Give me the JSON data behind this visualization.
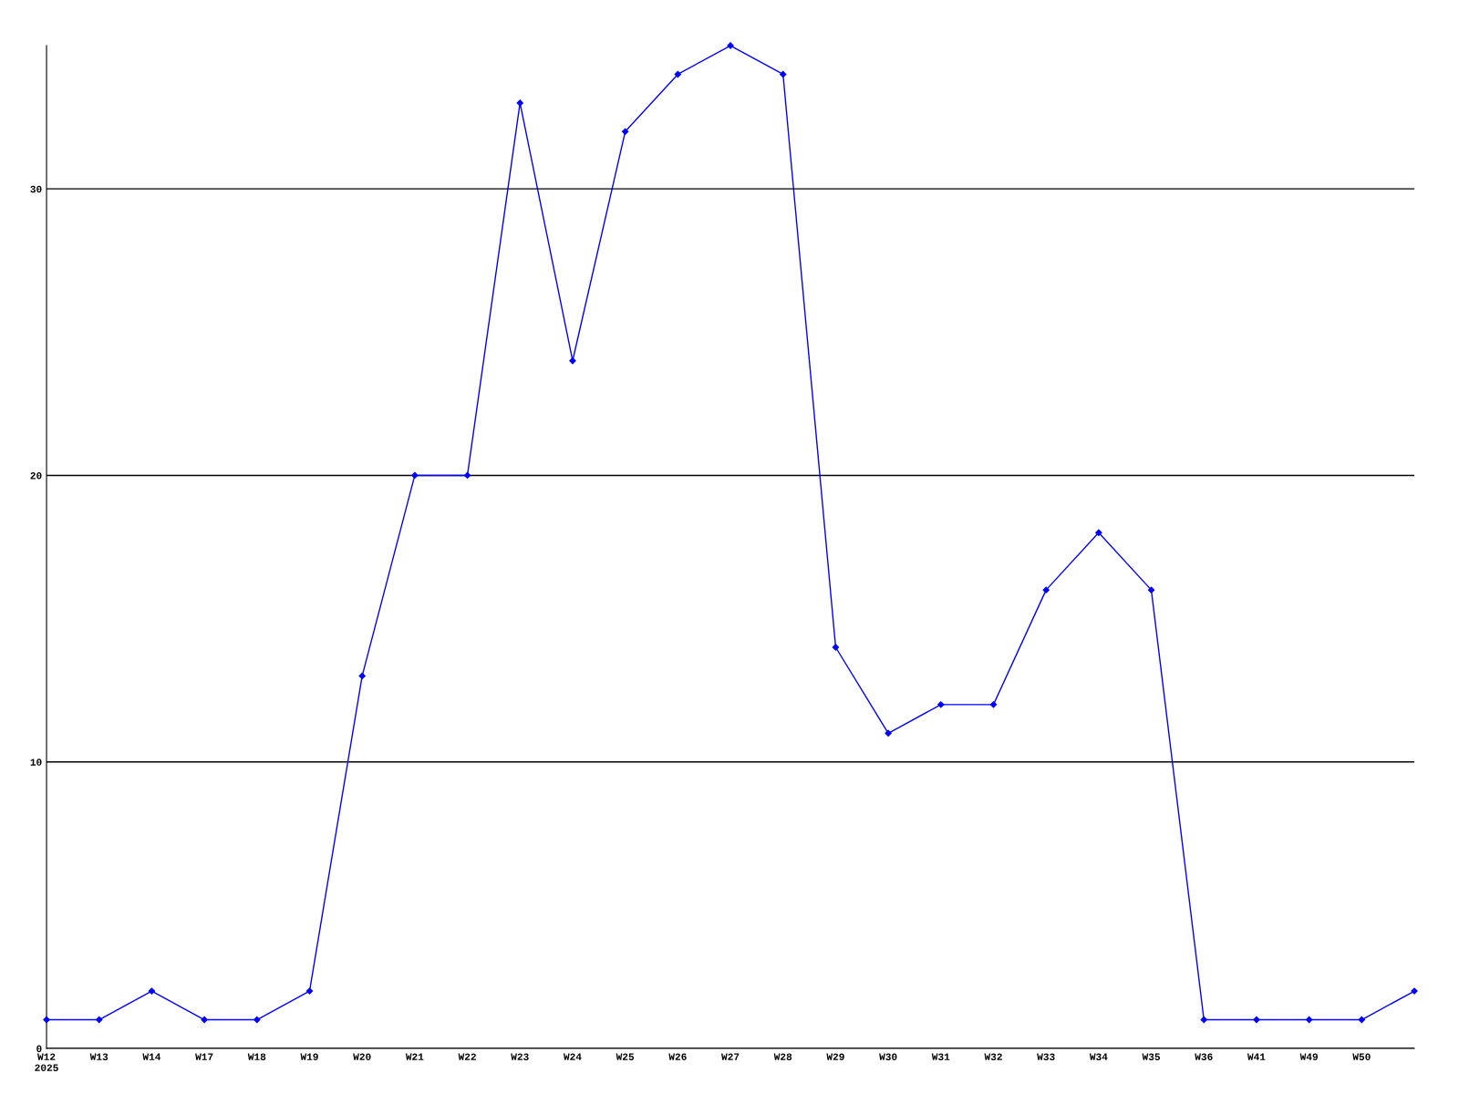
{
  "chart_data": {
    "type": "line",
    "categories": [
      "W12\n2025",
      "W13",
      "W14",
      "W17",
      "W18",
      "W19",
      "W20",
      "W21",
      "W22",
      "W23",
      "W24",
      "W25",
      "W26",
      "W27",
      "W28",
      "W29",
      "W30",
      "W31",
      "W32",
      "W33",
      "W34",
      "W35",
      "W36",
      "W41",
      "W49",
      "W50",
      null
    ],
    "series": [
      {
        "color": "#0000ff",
        "values": [
          1,
          1,
          2,
          1,
          1,
          2,
          13,
          20,
          20,
          33,
          24,
          32,
          34,
          35,
          34,
          14,
          11,
          12,
          12,
          16,
          18,
          16,
          1,
          1,
          1,
          1,
          2
        ]
      }
    ],
    "ylim": [
      0,
      35
    ],
    "yticks": [
      0,
      10,
      20,
      30
    ],
    "grid": "y",
    "marker": "diamond",
    "line_style": "solid",
    "legend": false
  }
}
